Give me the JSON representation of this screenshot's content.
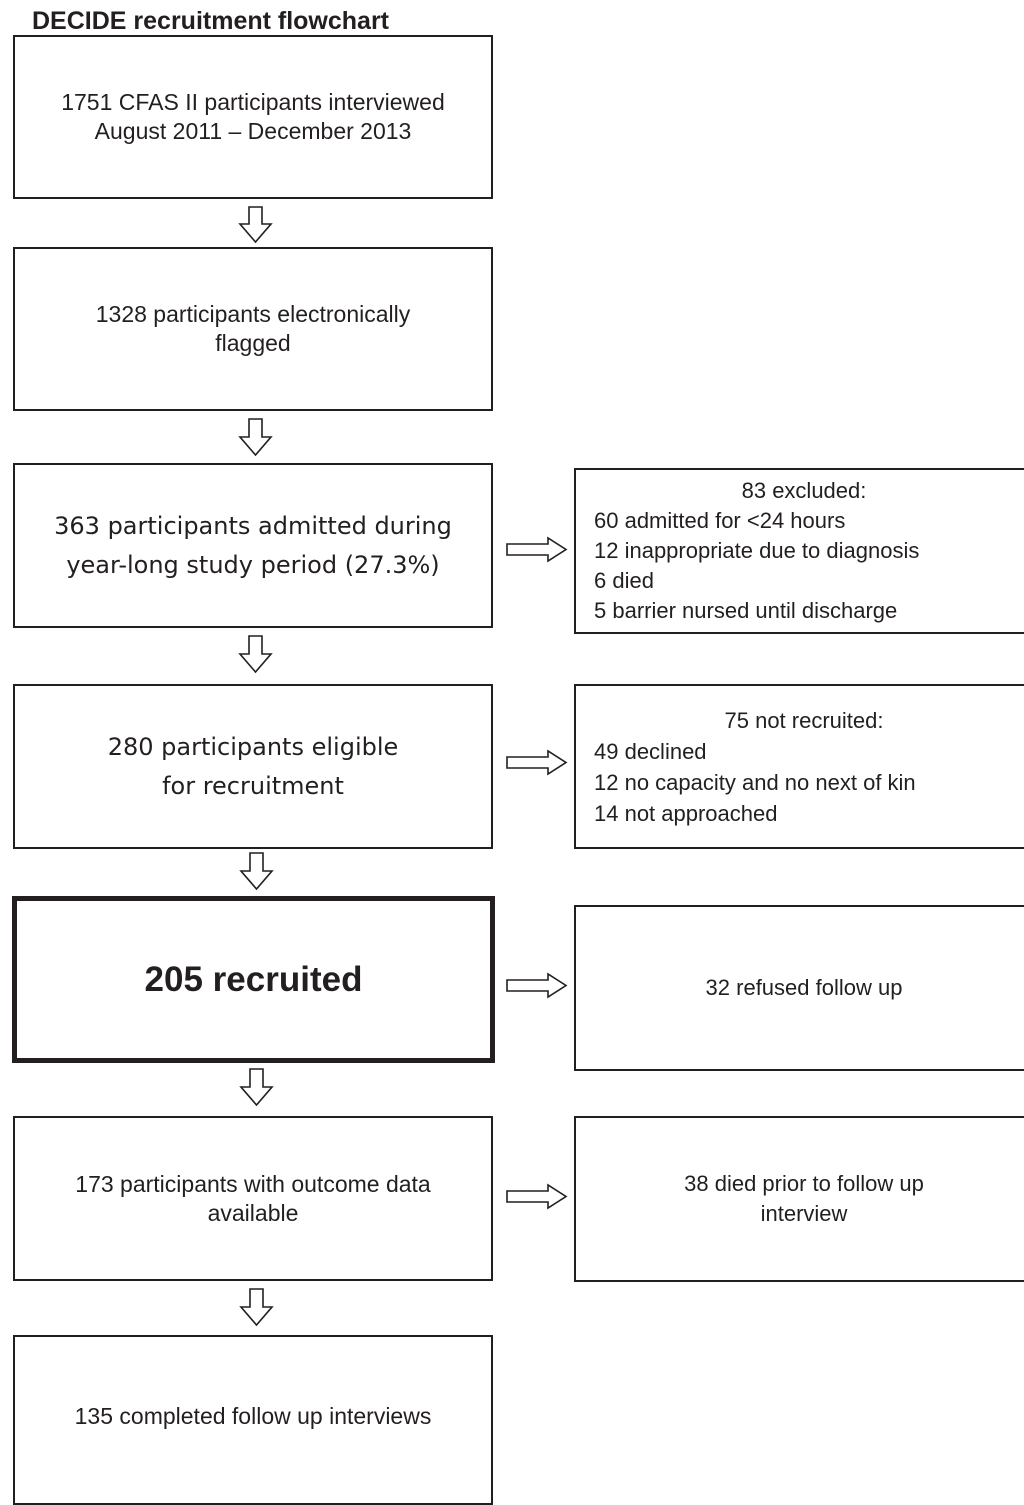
{
  "title": "DECIDE recruitment flowchart",
  "main_boxes": [
    {
      "lines": [
        "1751 CFAS II participants interviewed",
        "August 2011 – December 2013"
      ]
    },
    {
      "lines": [
        "1328 participants electronically",
        "flagged"
      ]
    },
    {
      "lines": [
        "363 participants admitted during",
        "year-long study period (27.3%)"
      ]
    },
    {
      "lines": [
        "280 participants eligible",
        "for recruitment"
      ]
    },
    {
      "lines": [
        "205 recruited"
      ]
    },
    {
      "lines": [
        "173 participants with outcome data",
        "available"
      ]
    },
    {
      "lines": [
        "135 completed follow up interviews"
      ]
    }
  ],
  "side_boxes": [
    {
      "header": "83 excluded:",
      "items": [
        "60 admitted for <24 hours",
        "12 inappropriate due to diagnosis",
        "6 died",
        "5 barrier nursed until discharge"
      ]
    },
    {
      "header": "75 not recruited:",
      "items": [
        "49 declined",
        "12 no capacity and no next of kin",
        "14 not approached"
      ]
    },
    {
      "lines": [
        "32 refused follow up"
      ]
    },
    {
      "lines": [
        "38 died prior to follow up",
        "interview"
      ]
    }
  ]
}
